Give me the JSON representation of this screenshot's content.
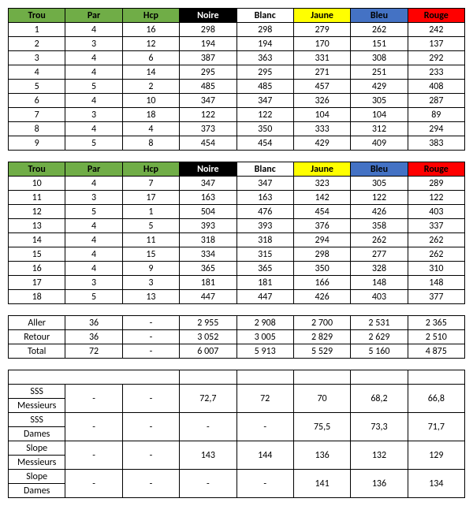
{
  "header": {
    "trou": {
      "label": "Trou",
      "bg": "#70ad47",
      "fg": "#000000"
    },
    "par": {
      "label": "Par",
      "bg": "#70ad47",
      "fg": "#000000"
    },
    "hcp": {
      "label": "Hcp",
      "bg": "#70ad47",
      "fg": "#000000"
    },
    "tees": [
      {
        "label": "Noire",
        "bg": "#000000",
        "fg": "#ffffff"
      },
      {
        "label": "Blanc",
        "bg": "#ffffff",
        "fg": "#000000"
      },
      {
        "label": "Jaune",
        "bg": "#ffff00",
        "fg": "#000000"
      },
      {
        "label": "Bleu",
        "bg": "#4472c4",
        "fg": "#000000"
      },
      {
        "label": "Rouge",
        "bg": "#ff0000",
        "fg": "#000000"
      }
    ]
  },
  "front9": [
    {
      "trou": "1",
      "par": "4",
      "hcp": "16",
      "d": [
        "298",
        "298",
        "279",
        "262",
        "242"
      ]
    },
    {
      "trou": "2",
      "par": "3",
      "hcp": "12",
      "d": [
        "194",
        "194",
        "170",
        "151",
        "137"
      ]
    },
    {
      "trou": "3",
      "par": "4",
      "hcp": "6",
      "d": [
        "387",
        "363",
        "331",
        "308",
        "292"
      ]
    },
    {
      "trou": "4",
      "par": "4",
      "hcp": "14",
      "d": [
        "295",
        "295",
        "271",
        "251",
        "233"
      ]
    },
    {
      "trou": "5",
      "par": "5",
      "hcp": "2",
      "d": [
        "485",
        "485",
        "457",
        "429",
        "408"
      ]
    },
    {
      "trou": "6",
      "par": "4",
      "hcp": "10",
      "d": [
        "347",
        "347",
        "326",
        "305",
        "287"
      ]
    },
    {
      "trou": "7",
      "par": "3",
      "hcp": "18",
      "d": [
        "122",
        "122",
        "104",
        "104",
        "89"
      ]
    },
    {
      "trou": "8",
      "par": "4",
      "hcp": "4",
      "d": [
        "373",
        "350",
        "333",
        "312",
        "294"
      ]
    },
    {
      "trou": "9",
      "par": "5",
      "hcp": "8",
      "d": [
        "454",
        "454",
        "429",
        "409",
        "383"
      ]
    }
  ],
  "back9": [
    {
      "trou": "10",
      "par": "4",
      "hcp": "7",
      "d": [
        "347",
        "347",
        "323",
        "305",
        "289"
      ]
    },
    {
      "trou": "11",
      "par": "3",
      "hcp": "17",
      "d": [
        "163",
        "163",
        "142",
        "122",
        "122"
      ]
    },
    {
      "trou": "12",
      "par": "5",
      "hcp": "1",
      "d": [
        "504",
        "476",
        "454",
        "426",
        "403"
      ]
    },
    {
      "trou": "13",
      "par": "4",
      "hcp": "5",
      "d": [
        "393",
        "393",
        "376",
        "358",
        "337"
      ]
    },
    {
      "trou": "14",
      "par": "4",
      "hcp": "11",
      "d": [
        "318",
        "318",
        "294",
        "262",
        "262"
      ]
    },
    {
      "trou": "15",
      "par": "4",
      "hcp": "15",
      "d": [
        "334",
        "315",
        "298",
        "277",
        "262"
      ]
    },
    {
      "trou": "16",
      "par": "4",
      "hcp": "9",
      "d": [
        "365",
        "365",
        "350",
        "328",
        "310"
      ]
    },
    {
      "trou": "17",
      "par": "3",
      "hcp": "3",
      "d": [
        "181",
        "181",
        "166",
        "148",
        "148"
      ]
    },
    {
      "trou": "18",
      "par": "5",
      "hcp": "13",
      "d": [
        "447",
        "447",
        "426",
        "403",
        "377"
      ]
    }
  ],
  "totals": [
    {
      "label": "Aller",
      "par": "36",
      "hcp": "-",
      "d": [
        "2 955",
        "2 908",
        "2 700",
        "2 531",
        "2 365"
      ]
    },
    {
      "label": "Retour",
      "par": "36",
      "hcp": "-",
      "d": [
        "3 052",
        "3 005",
        "2 829",
        "2 629",
        "2 510"
      ]
    },
    {
      "label": "Total",
      "par": "72",
      "hcp": "-",
      "d": [
        "6 007",
        "5 913",
        "5 529",
        "5 160",
        "4 875"
      ]
    }
  ],
  "ratings": [
    {
      "label1": "SSS",
      "label2": "Messieurs",
      "par": "-",
      "hcp": "-",
      "d": [
        "72,7",
        "72",
        "70",
        "68,2",
        "66,8"
      ]
    },
    {
      "label1": "SSS",
      "label2": "Dames",
      "par": "-",
      "hcp": "-",
      "d": [
        "-",
        "-",
        "75,5",
        "73,3",
        "71,7"
      ]
    },
    {
      "label1": "Slope",
      "label2": "Messieurs",
      "par": "-",
      "hcp": "-",
      "d": [
        "143",
        "144",
        "136",
        "132",
        "129"
      ]
    },
    {
      "label1": "Slope",
      "label2": "Dames",
      "par": "-",
      "hcp": "-",
      "d": [
        "-",
        "-",
        "141",
        "136",
        "134"
      ]
    }
  ]
}
